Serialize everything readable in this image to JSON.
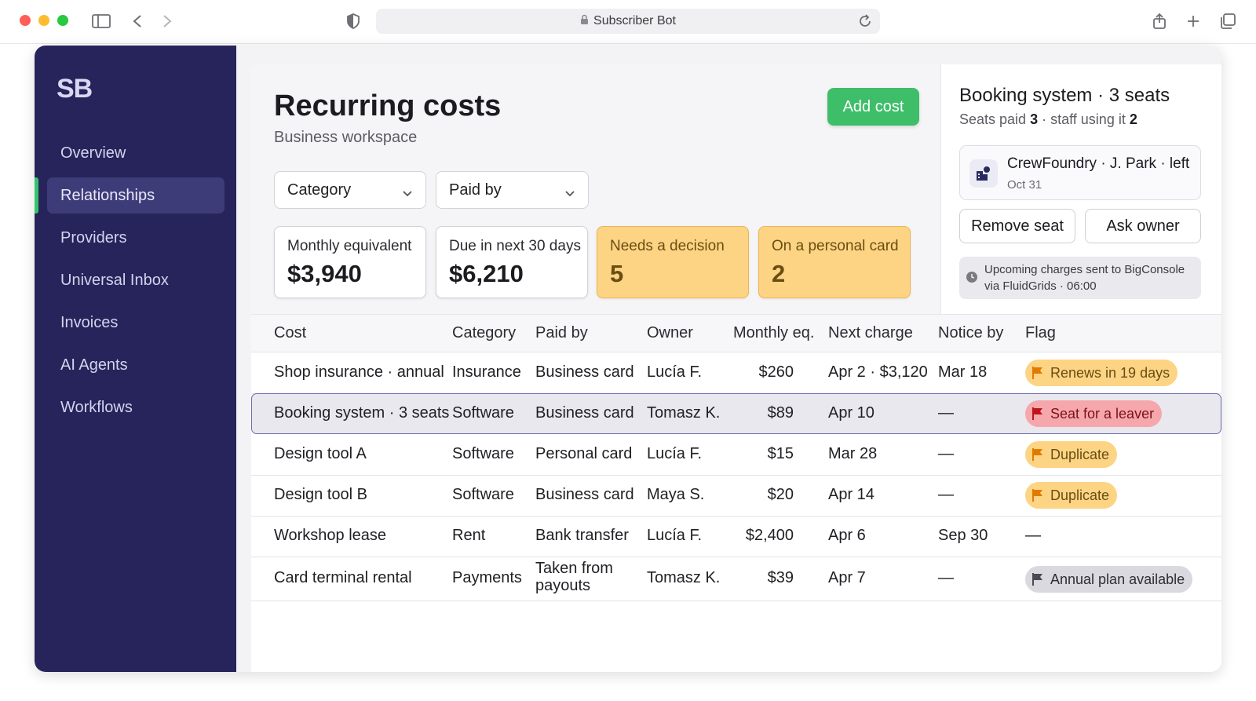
{
  "browser": {
    "url_title": "Subscriber Bot"
  },
  "sidebar": {
    "logo": "SB",
    "items": [
      {
        "label": "Overview"
      },
      {
        "label": "Relationships"
      },
      {
        "label": "Providers"
      },
      {
        "label": "Universal Inbox"
      },
      {
        "label": "Invoices"
      },
      {
        "label": "AI Agents"
      },
      {
        "label": "Workflows"
      }
    ],
    "active_item": "Relationships"
  },
  "header": {
    "title": "Recurring costs",
    "subtitle": "Business workspace",
    "add_button": "Add cost"
  },
  "filters": {
    "category": "Category",
    "paid_by": "Paid by"
  },
  "stats": [
    {
      "label": "Monthly equivalent",
      "value": "$3,940"
    },
    {
      "label": "Due in next 30 days",
      "value": "$6,210"
    },
    {
      "label": "Needs a decision",
      "value": "5"
    },
    {
      "label": "On a personal card",
      "value": "2"
    }
  ],
  "detail": {
    "title": "Booking system · 3 seats",
    "seats_label": "Seats paid",
    "seats_paid": "3",
    "usage_label": "· staff using it",
    "staff_using": "2",
    "leaver": {
      "name": "CrewFoundry · J. Park · left",
      "date": "Oct 31"
    },
    "remove_button": "Remove seat",
    "ask_button": "Ask owner",
    "notice_line1": "Upcoming charges sent to BigConsole",
    "notice_line2": "via FluidGrids · 06:00"
  },
  "table": {
    "columns": [
      "Cost",
      "Category",
      "Paid by",
      "Owner",
      "Monthly eq.",
      "Next charge",
      "Notice by",
      "Flag"
    ],
    "rows": [
      {
        "cost": "Shop insurance · annual",
        "category": "Insurance",
        "paid_by": "Business card",
        "owner": "Lucía F.",
        "monthly": "$260",
        "next": "Apr 2 · $3,120",
        "notice": "Mar 18",
        "flag": "Renews in 19 days",
        "flag_tone": "amber"
      },
      {
        "cost": "Booking system · 3 seats",
        "category": "Software",
        "paid_by": "Business card",
        "owner": "Tomasz K.",
        "monthly": "$89",
        "next": "Apr 10",
        "notice": "—",
        "flag": "Seat for a leaver",
        "flag_tone": "red"
      },
      {
        "cost": "Design tool A",
        "category": "Software",
        "paid_by": "Personal card",
        "owner": "Lucía F.",
        "monthly": "$15",
        "next": "Mar 28",
        "notice": "—",
        "flag": "Duplicate",
        "flag_tone": "amber"
      },
      {
        "cost": "Design tool B",
        "category": "Software",
        "paid_by": "Business card",
        "owner": "Maya S.",
        "monthly": "$20",
        "next": "Apr 14",
        "notice": "—",
        "flag": "Duplicate",
        "flag_tone": "amber"
      },
      {
        "cost": "Workshop lease",
        "category": "Rent",
        "paid_by": "Bank transfer",
        "owner": "Lucía F.",
        "monthly": "$2,400",
        "next": "Apr 6",
        "notice": "Sep 30",
        "flag": "—",
        "flag_tone": "none"
      },
      {
        "cost": "Card terminal rental",
        "category": "Payments",
        "paid_by": "Taken from payouts",
        "owner": "Tomasz K.",
        "monthly": "$39",
        "next": "Apr 7",
        "notice": "—",
        "flag": "Annual plan available",
        "flag_tone": "gray"
      }
    ]
  },
  "colors": {
    "sidebar": "#26245a",
    "accent_green": "#3fbe6a",
    "warn": "#fcd484",
    "danger": "#f6a7ac",
    "flag_amber_icon": "#e07b00",
    "flag_red_icon": "#c0141c"
  }
}
